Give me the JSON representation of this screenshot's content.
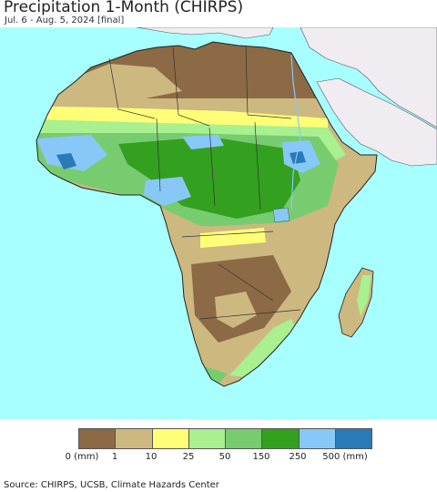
{
  "header": {
    "title": "Precipitation 1-Month (CHIRPS)",
    "subtitle": "Jul. 6 - Aug. 5, 2024 [final]"
  },
  "legend": {
    "colors": [
      "#8B6A45",
      "#CDB880",
      "#FFFF77",
      "#A8F090",
      "#78CC70",
      "#33A020",
      "#88C8F8",
      "#2A7AB8"
    ],
    "ticks": [
      "0 (mm)",
      "1",
      "10",
      "25",
      "50",
      "150",
      "250",
      "500 (mm)"
    ]
  },
  "map": {
    "ocean_color": "#A8FFFF",
    "land_colors": {
      "desert": "#8B6A45",
      "dry": "#CDB880",
      "sahel": "#FFFF77",
      "light": "#A8F090",
      "moderate": "#78CC70",
      "heavy": "#33A020",
      "very_heavy": "#88C8F8",
      "extreme": "#2A7AB8",
      "outside": "#F0ECF2"
    }
  },
  "footer": {
    "source": "Source: CHIRPS, UCSB, Climate Hazards Center"
  }
}
